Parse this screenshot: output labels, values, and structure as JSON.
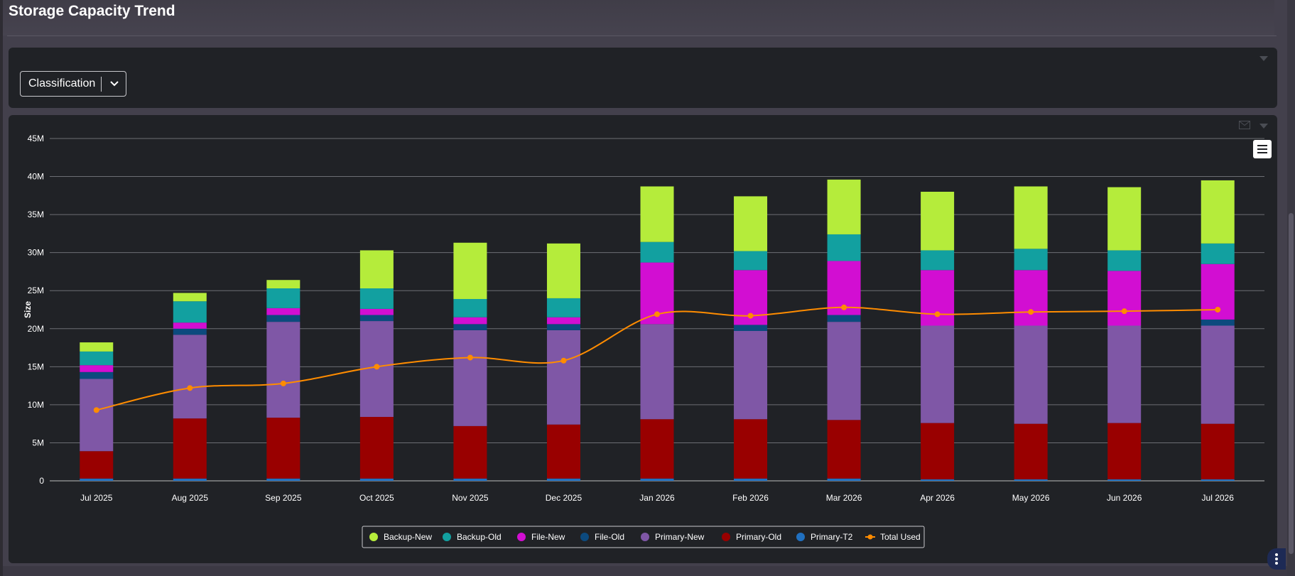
{
  "page": {
    "title": "Storage Capacity Trend"
  },
  "filter": {
    "selected": "Classification"
  },
  "legend_items": [
    {
      "name": "Backup-New",
      "color": "#b5ec3b",
      "marker": "circle"
    },
    {
      "name": "Backup-Old",
      "color": "#12a0a0",
      "marker": "circle"
    },
    {
      "name": "File-New",
      "color": "#d20ed2",
      "marker": "circle"
    },
    {
      "name": "File-Old",
      "color": "#0c4a7e",
      "marker": "circle"
    },
    {
      "name": "Primary-New",
      "color": "#7f57a6",
      "marker": "circle"
    },
    {
      "name": "Primary-Old",
      "color": "#990000",
      "marker": "circle"
    },
    {
      "name": "Primary-T2",
      "color": "#2070c0",
      "marker": "circle"
    },
    {
      "name": "Total Used",
      "color": "#ff8c00",
      "marker": "line"
    }
  ],
  "chart_data": {
    "type": "bar",
    "stacked": true,
    "title": "",
    "xlabel": "",
    "ylabel": "Size",
    "ylim": [
      0,
      45000000
    ],
    "y_ticks": [
      "0",
      "5M",
      "10M",
      "15M",
      "20M",
      "25M",
      "30M",
      "35M",
      "40M",
      "45M"
    ],
    "grid": true,
    "legend_position": "bottom-center",
    "categories": [
      "Jul 2025",
      "Aug 2025",
      "Sep 2025",
      "Oct 2025",
      "Nov 2025",
      "Dec 2025",
      "Jan 2026",
      "Feb 2026",
      "Mar 2026",
      "Apr 2026",
      "May 2026",
      "Jun 2026",
      "Jul 2026"
    ],
    "series": [
      {
        "name": "Primary-T2",
        "type": "bar",
        "color": "#2070c0",
        "values": [
          0.3,
          0.3,
          0.3,
          0.3,
          0.3,
          0.3,
          0.3,
          0.3,
          0.3,
          0.2,
          0.2,
          0.2,
          0.2
        ]
      },
      {
        "name": "Primary-Old",
        "type": "bar",
        "color": "#990000",
        "values": [
          3.6,
          7.9,
          8.0,
          8.1,
          6.9,
          7.1,
          7.8,
          7.8,
          7.7,
          7.4,
          7.3,
          7.4,
          7.3
        ]
      },
      {
        "name": "Primary-New",
        "type": "bar",
        "color": "#7f57a6",
        "values": [
          9.5,
          11.0,
          12.6,
          12.6,
          12.6,
          12.4,
          12.5,
          11.6,
          12.9,
          12.8,
          12.9,
          12.8,
          12.9
        ]
      },
      {
        "name": "File-Old",
        "type": "bar",
        "color": "#0c4a7e",
        "values": [
          0.9,
          0.8,
          0.9,
          0.8,
          0.8,
          0.8,
          0.0,
          0.8,
          0.9,
          0.0,
          0.0,
          0.0,
          0.8
        ]
      },
      {
        "name": "File-New",
        "type": "bar",
        "color": "#d20ed2",
        "values": [
          0.9,
          0.8,
          0.9,
          0.8,
          0.9,
          0.9,
          8.1,
          7.2,
          7.1,
          7.3,
          7.3,
          7.2,
          7.3
        ]
      },
      {
        "name": "Backup-Old",
        "type": "bar",
        "color": "#12a0a0",
        "values": [
          1.8,
          2.8,
          2.6,
          2.7,
          2.4,
          2.5,
          2.7,
          2.5,
          3.5,
          2.6,
          2.8,
          2.7,
          2.7
        ]
      },
      {
        "name": "Backup-New",
        "type": "bar",
        "color": "#b5ec3b",
        "values": [
          1.2,
          1.1,
          1.1,
          5.0,
          7.4,
          7.2,
          7.3,
          7.2,
          7.2,
          7.7,
          8.2,
          8.3,
          8.3
        ]
      },
      {
        "name": "Total Used",
        "type": "line",
        "color": "#ff8c00",
        "values": [
          9.3,
          12.2,
          12.8,
          15.0,
          16.2,
          15.8,
          21.9,
          21.7,
          22.8,
          21.9,
          22.2,
          22.3,
          22.5
        ]
      }
    ],
    "unit_multiplier": 1000000
  }
}
